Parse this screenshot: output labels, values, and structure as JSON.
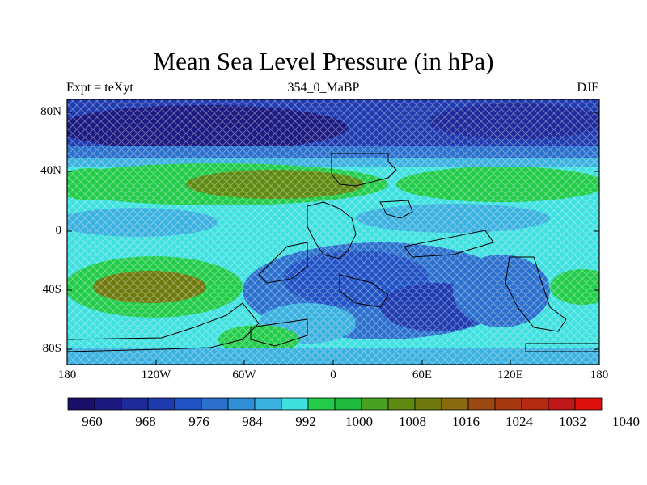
{
  "title": "Mean Sea Level Pressure (in hPa)",
  "subtitle_left": "Expt = teXyt",
  "subtitle_center": "354_0_MaBP",
  "subtitle_right": "DJF",
  "lat_labels": [
    "80N",
    "40N",
    "0",
    "40S",
    "80S"
  ],
  "lon_labels": [
    "180",
    "120W",
    "60W",
    "0",
    "60E",
    "120E",
    "180"
  ],
  "colorbar": {
    "colors": [
      "#1a0f6b",
      "#1c1a80",
      "#1e2a9a",
      "#1f3bb0",
      "#2152c4",
      "#2a70cc",
      "#2f8fd6",
      "#3bb1e0",
      "#3fe0e0",
      "#22cc4a",
      "#1fbb3e",
      "#4aa020",
      "#5e8a12",
      "#6e7a0e",
      "#8a6a0e",
      "#9a4a10",
      "#a83810",
      "#b52a12",
      "#c01818",
      "#e01010"
    ],
    "tick_labels": [
      "960",
      "968",
      "976",
      "984",
      "992",
      "1000",
      "1008",
      "1016",
      "1024",
      "1032",
      "1040"
    ]
  },
  "colors": {
    "land_outline": "#000000",
    "hatch": "#ffffff"
  }
}
